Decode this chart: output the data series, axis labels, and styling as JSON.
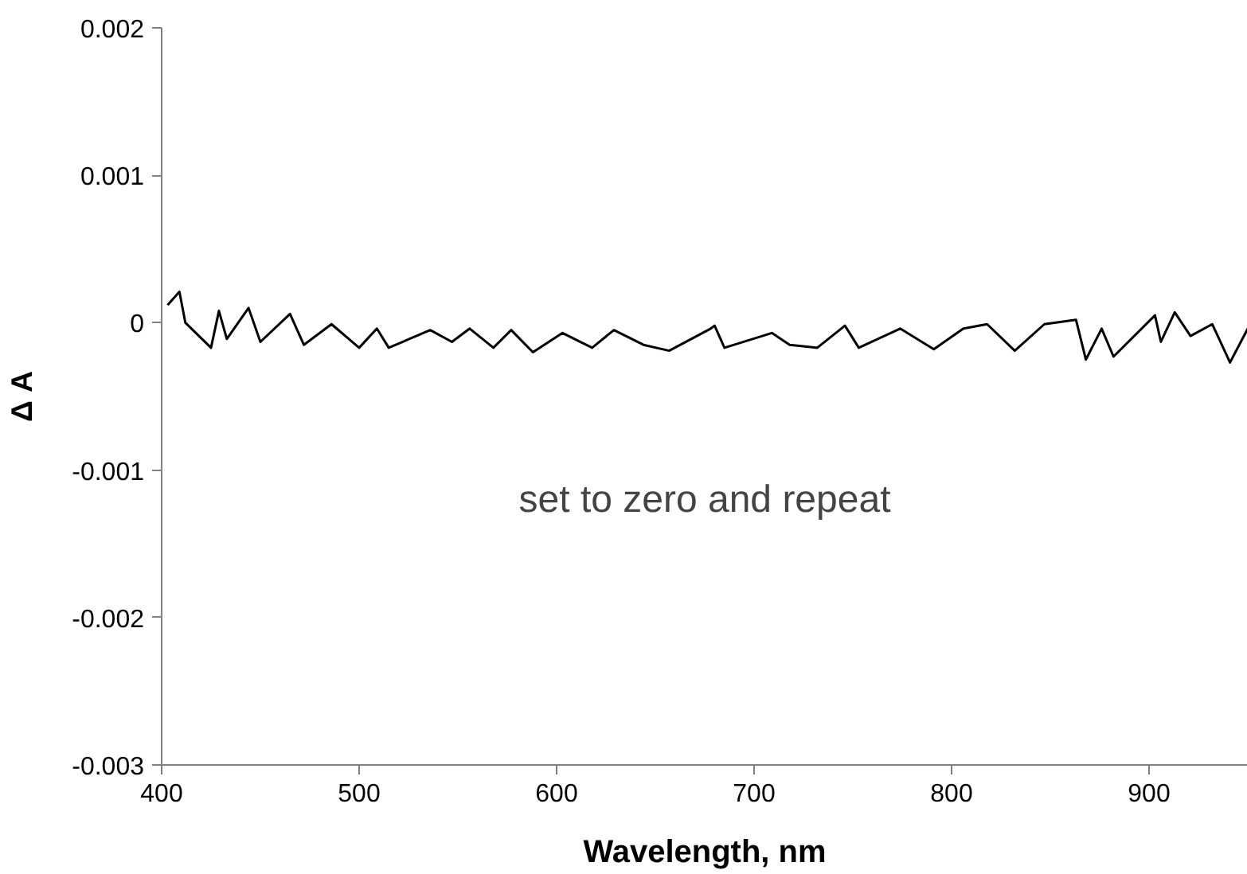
{
  "chart_data": {
    "type": "line",
    "xlabel": "Wavelength, nm",
    "ylabel": "Δ A",
    "annotations": [
      "set to zero and repeat"
    ],
    "xlim": [
      400,
      950
    ],
    "ylim": [
      -0.003,
      0.002
    ],
    "xticks": [
      400,
      500,
      600,
      700,
      800,
      900
    ],
    "yticks": [
      {
        "value": -0.003,
        "label": "-0.003"
      },
      {
        "value": -0.002,
        "label": "-0.002"
      },
      {
        "value": -0.001,
        "label": "-0.001"
      },
      {
        "value": 0,
        "label": "0"
      },
      {
        "value": 0.001,
        "label": "0.001"
      },
      {
        "value": 0.002,
        "label": "0.002"
      }
    ],
    "grid": false,
    "marker": "none",
    "line_style": "solid",
    "series": [
      {
        "color": "#000000",
        "x": [
          403,
          409,
          412,
          425,
          429,
          433,
          444,
          450,
          465,
          472,
          486,
          500,
          509,
          515,
          536,
          547,
          556,
          568,
          577,
          588,
          603,
          618,
          629,
          644,
          657,
          678,
          680,
          685,
          709,
          718,
          732,
          746,
          753,
          774,
          791,
          806,
          818,
          832,
          847,
          863,
          868,
          876,
          882,
          903,
          906,
          913,
          921,
          932,
          941,
          950
        ],
        "values": [
          0.00012,
          0.00021,
          0,
          -0.00017,
          8e-05,
          -0.00011,
          0.0001,
          -0.00013,
          6e-05,
          -0.00015,
          -1e-05,
          -0.00017,
          -4e-05,
          -0.00017,
          -5e-05,
          -0.00013,
          -4e-05,
          -0.00017,
          -5e-05,
          -0.0002,
          -7e-05,
          -0.00017,
          -5e-05,
          -0.00015,
          -0.00019,
          -4e-05,
          -2e-05,
          -0.00017,
          -7e-05,
          -0.00015,
          -0.00017,
          -2e-05,
          -0.00017,
          -4e-05,
          -0.00018,
          -4e-05,
          -1e-05,
          -0.00019,
          -1e-05,
          2e-05,
          -0.00025,
          -4e-05,
          -0.00023,
          5e-05,
          -0.00013,
          7e-05,
          -9e-05,
          -1e-05,
          -0.00027,
          -4e-05
        ]
      }
    ]
  }
}
